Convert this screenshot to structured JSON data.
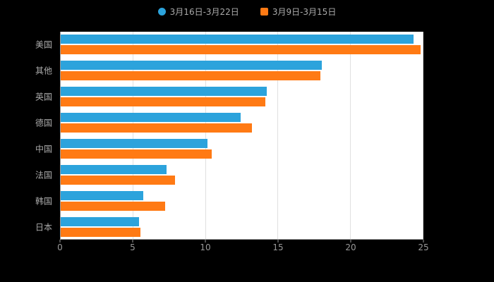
{
  "colors": {
    "background": "#000000",
    "plot_background": "#ffffff",
    "series_blue": "#2CA3DC",
    "series_orange": "#FF7A14",
    "gridline": "#e0e0e0",
    "axis_text": "#999999",
    "category_text": "#aaaaaa"
  },
  "legend": {
    "items": [
      {
        "label": "3月16日-3月22日",
        "marker": "circle",
        "color": "#2CA3DC"
      },
      {
        "label": "3月9日-3月15日",
        "marker": "square",
        "color": "#FF7A14"
      }
    ]
  },
  "chart_data": {
    "type": "bar",
    "orientation": "horizontal",
    "title": "",
    "xlabel": "",
    "ylabel": "",
    "xlim": [
      0,
      25
    ],
    "x_ticks": [
      0,
      5,
      10,
      15,
      20,
      25
    ],
    "grid": true,
    "legend_position": "top-center",
    "categories": [
      "美国",
      "其他",
      "英国",
      "德国",
      "中国",
      "法国",
      "韩国",
      "日本"
    ],
    "series": [
      {
        "name": "3月16日-3月22日",
        "color": "#2CA3DC",
        "values": [
          24.3,
          18.0,
          14.2,
          12.4,
          10.1,
          7.3,
          5.7,
          5.4
        ]
      },
      {
        "name": "3月9日-3月15日",
        "color": "#FF7A14",
        "values": [
          24.8,
          17.9,
          14.1,
          13.2,
          10.4,
          7.9,
          7.2,
          5.5
        ]
      }
    ]
  }
}
